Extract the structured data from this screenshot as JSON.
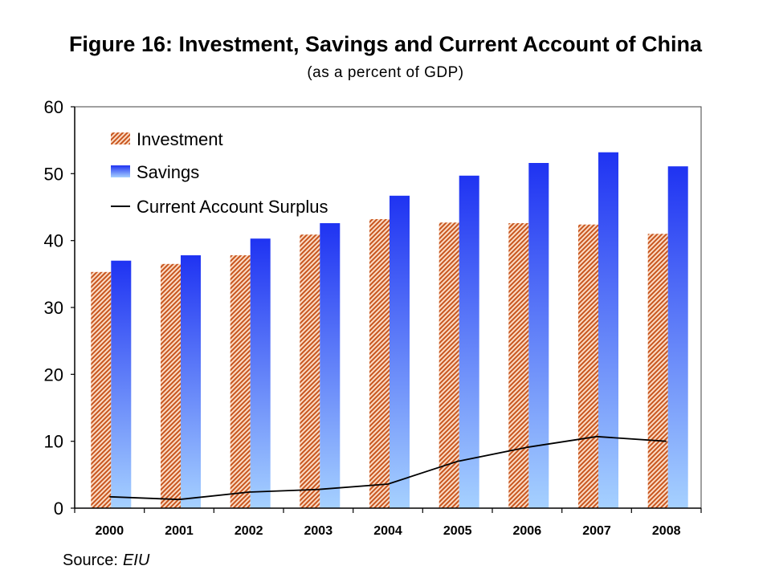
{
  "chart_data": {
    "type": "bar",
    "title": "Figure 16: Investment, Savings and Current Account of China",
    "subtitle": "(as a percent of GDP)",
    "categories": [
      "2000",
      "2001",
      "2002",
      "2003",
      "2004",
      "2005",
      "2006",
      "2007",
      "2008"
    ],
    "series": [
      {
        "name": "Investment",
        "type": "bar",
        "values": [
          35.3,
          36.5,
          37.8,
          40.9,
          43.2,
          42.7,
          42.6,
          42.4,
          41.0
        ],
        "color": "#c8561f",
        "background": "#fbdcc6"
      },
      {
        "name": "Savings",
        "type": "bar",
        "values": [
          37.0,
          37.8,
          40.3,
          42.6,
          46.7,
          49.7,
          51.6,
          53.2,
          51.1
        ],
        "color_top": "#1f33f2",
        "color_bottom": "#a6d1ff"
      },
      {
        "name": "Current Account Surplus",
        "type": "line",
        "values": [
          1.7,
          1.3,
          2.4,
          2.8,
          3.6,
          7.0,
          9.1,
          10.7,
          10.0
        ],
        "color": "#000000"
      }
    ],
    "ylim": [
      0,
      60
    ],
    "yticks": [
      0,
      10,
      20,
      30,
      40,
      50,
      60
    ],
    "xlabel": "",
    "ylabel": "",
    "legend": "top-left",
    "grid": false
  },
  "source": {
    "label": "Source:",
    "value": "EIU"
  }
}
